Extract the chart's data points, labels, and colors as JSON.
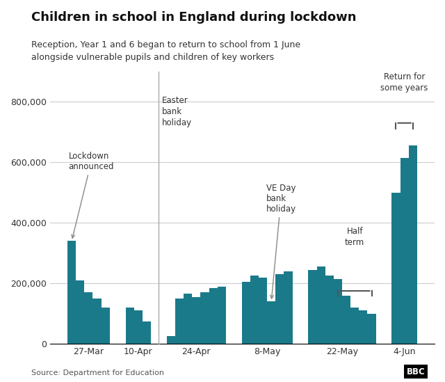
{
  "title": "Children in school in England during lockdown",
  "subtitle": "Reception, Year 1 and 6 began to return to school from 1 June\nalongside vulnerable pupils and children of key workers",
  "source": "Source: Department for Education",
  "bar_color": "#1a7a8a",
  "background_color": "#ffffff",
  "ytick_labels": [
    "0",
    "200,000",
    "400,000",
    "600,000",
    "800,000"
  ],
  "xlabel_labels": [
    "27-Mar",
    "10-Apr",
    "24-Apr",
    "8-May",
    "22-May",
    "4-Jun"
  ],
  "bar_values": [
    340000,
    210000,
    170000,
    150000,
    120000,
    120000,
    110000,
    75000,
    25000,
    150000,
    165000,
    155000,
    170000,
    185000,
    190000,
    205000,
    225000,
    220000,
    140000,
    230000,
    240000,
    245000,
    255000,
    225000,
    215000,
    160000,
    120000,
    110000,
    100000,
    500000,
    615000,
    655000
  ],
  "groups": [
    5,
    3,
    7,
    6,
    8,
    3
  ]
}
